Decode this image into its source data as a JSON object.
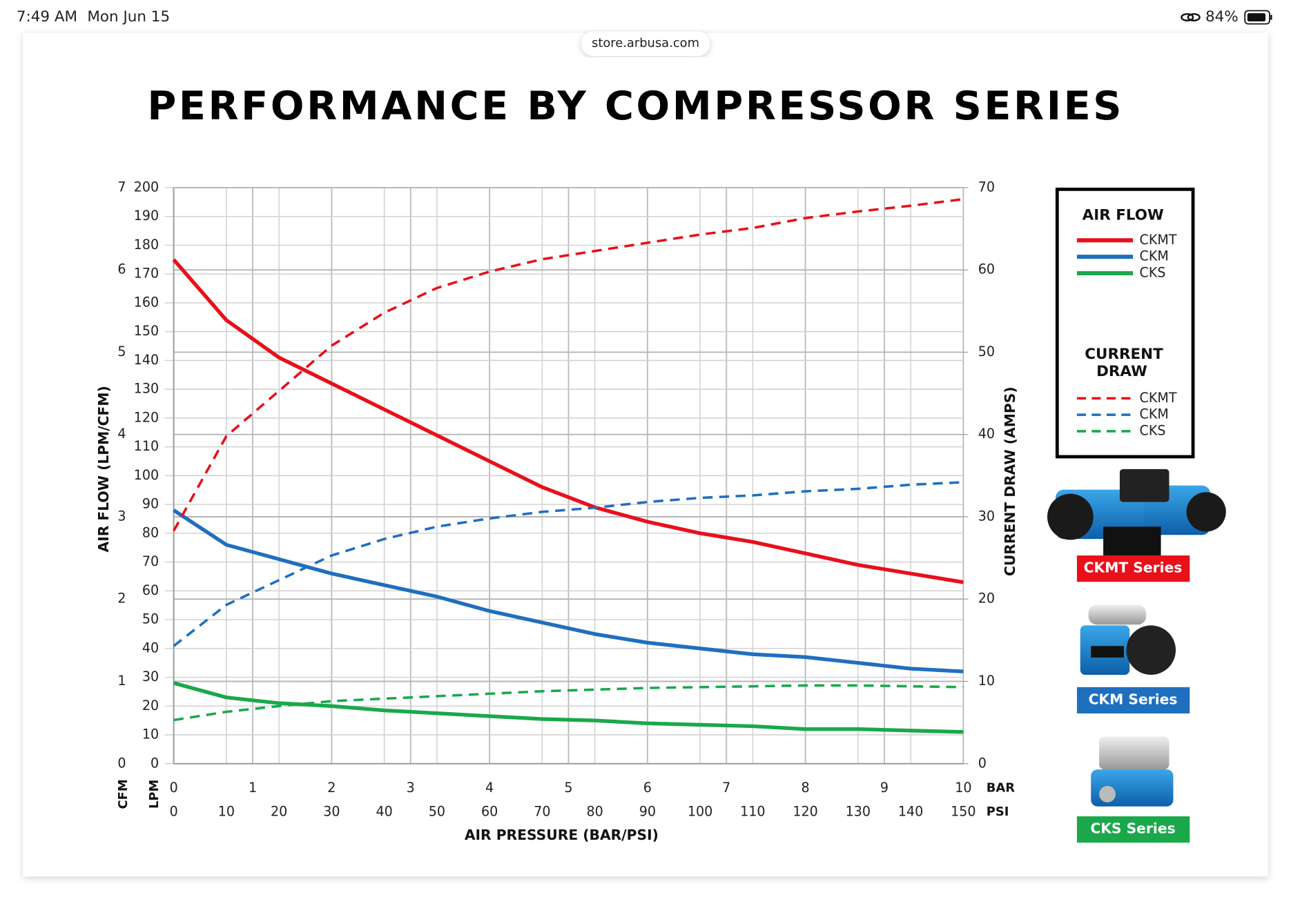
{
  "status_bar": {
    "time": "7:49 AM",
    "date": "Mon Jun 15",
    "battery": "84%"
  },
  "url": "store.arbusa.com",
  "chart_data": {
    "type": "line",
    "title": "PERFORMANCE BY COMPRESSOR SERIES",
    "x_label": "AIR PRESSURE (BAR/PSI)",
    "y_label": "AIR FLOW (LPM/CFM)",
    "y2_label": "CURRENT DRAW (AMPS)",
    "x": [
      0,
      10,
      20,
      30,
      40,
      50,
      60,
      70,
      80,
      90,
      100,
      110,
      120,
      130,
      140,
      150
    ],
    "xlim": [
      0,
      150
    ],
    "xticks": [
      0,
      10,
      20,
      30,
      40,
      50,
      60,
      70,
      80,
      90,
      100,
      110,
      120,
      130,
      140,
      150
    ],
    "x_unit": "PSI",
    "x2lim": [
      0,
      10
    ],
    "x2ticks": [
      0,
      1,
      2,
      3,
      4,
      5,
      6,
      7,
      8,
      9,
      10
    ],
    "x2_unit": "BAR",
    "ylim": [
      0,
      200
    ],
    "yticks": [
      0,
      10,
      20,
      30,
      40,
      50,
      60,
      70,
      80,
      90,
      100,
      110,
      120,
      130,
      140,
      150,
      160,
      170,
      180,
      190,
      200
    ],
    "y_unit": "LPM",
    "cfm_lim": [
      0,
      7
    ],
    "cfm_ticks": [
      0,
      1,
      2,
      3,
      4,
      5,
      6,
      7
    ],
    "cfm_unit": "CFM",
    "y2lim": [
      0,
      70
    ],
    "y2ticks": [
      0,
      10,
      20,
      30,
      40,
      50,
      60,
      70
    ],
    "grid": true,
    "legend_titles": {
      "air_flow": "AIR FLOW",
      "current_draw": "CURRENT DRAW"
    },
    "series": [
      {
        "name": "CKMT",
        "color": "#e8101a",
        "dash": false,
        "values": [
          175,
          154,
          141,
          132,
          123,
          114,
          105,
          96,
          89,
          84,
          80,
          77,
          73,
          69,
          66,
          63
        ]
      },
      {
        "name": "CKM",
        "color": "#1f6fbf",
        "dash": false,
        "values": [
          88,
          76,
          71,
          66,
          62,
          58,
          53,
          49,
          45,
          42,
          40,
          38,
          37,
          35,
          33,
          32
        ]
      },
      {
        "name": "CKS",
        "color": "#1aa84a",
        "dash": false,
        "values": [
          28,
          23,
          21,
          20,
          18.5,
          17.5,
          16.5,
          15.5,
          15,
          14,
          13.5,
          13,
          12,
          12,
          11.5,
          11
        ]
      },
      {
        "name": "CKMT",
        "color": "#e8101a",
        "dash": true,
        "axis": "y2",
        "values": [
          28.3,
          39.8,
          45.3,
          50.8,
          54.8,
          57.8,
          59.8,
          61.3,
          62.3,
          63.3,
          64.3,
          65.1,
          66.3,
          67.1,
          67.8,
          68.6
        ]
      },
      {
        "name": "CKM",
        "color": "#1f6fbf",
        "dash": true,
        "axis": "y2",
        "values": [
          14.3,
          19.3,
          22.3,
          25.3,
          27.3,
          28.8,
          29.8,
          30.6,
          31.1,
          31.8,
          32.3,
          32.6,
          33.1,
          33.4,
          33.9,
          34.2
        ]
      },
      {
        "name": "CKS",
        "color": "#1aa84a",
        "dash": true,
        "axis": "y2",
        "values": [
          5.3,
          6.3,
          7,
          7.6,
          7.9,
          8.2,
          8.5,
          8.8,
          9,
          9.2,
          9.3,
          9.4,
          9.5,
          9.5,
          9.4,
          9.3
        ]
      }
    ],
    "products": [
      {
        "label": "CKMT Series",
        "color": "#e8101a"
      },
      {
        "label": "CKM Series",
        "color": "#1f6fbf"
      },
      {
        "label": "CKS Series",
        "color": "#1aa84a"
      }
    ]
  }
}
